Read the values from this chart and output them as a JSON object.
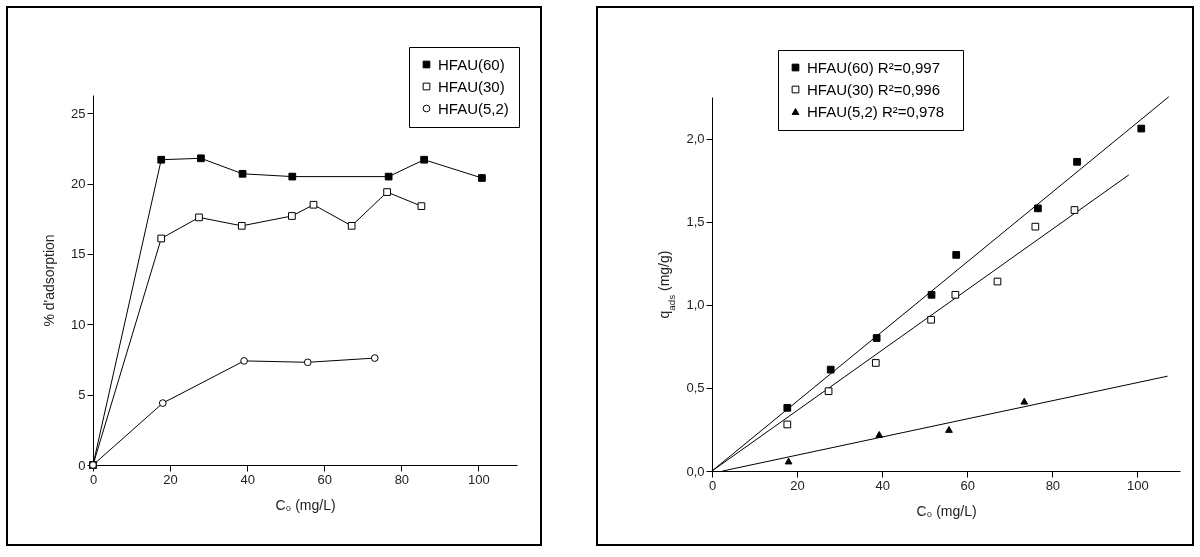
{
  "chart_data": [
    {
      "type": "line",
      "xlabel": "C₀ (mg/L)",
      "ylabel": "% d'adsorption",
      "xlim": [
        0,
        110
      ],
      "ylim": [
        0,
        26.3
      ],
      "xticks": [
        0,
        20,
        40,
        60,
        80,
        100
      ],
      "yticks": [
        0,
        5,
        10,
        15,
        20,
        25
      ],
      "grid": false,
      "legend": "top right",
      "series": [
        {
          "name": "HFAU(60)",
          "color": "#000000",
          "marker": "square",
          "x": [
            0,
            17.7,
            28.0,
            38.8,
            51.7,
            76.7,
            85.9,
            100.9
          ],
          "values": [
            0,
            21.7,
            21.8,
            20.7,
            20.5,
            20.5,
            21.7,
            20.4
          ]
        },
        {
          "name": "HFAU(30)",
          "color": "#ffffff",
          "marker": "square",
          "x": [
            0,
            17.7,
            27.5,
            38.6,
            51.6,
            57.2,
            67.1,
            76.3,
            85.2
          ],
          "values": [
            0,
            16.1,
            17.6,
            17.0,
            17.7,
            18.5,
            17.0,
            19.4,
            18.4
          ]
        },
        {
          "name": "HFAU(5,2)",
          "color": "#ffffff",
          "marker": "circle",
          "x": [
            0,
            18.1,
            39.2,
            55.7,
            73.1
          ],
          "values": [
            0,
            4.4,
            7.4,
            7.3,
            7.6
          ]
        }
      ]
    },
    {
      "type": "scatter",
      "xlabel": "C₀ (mg/L)",
      "ylabel": "q$_{ads}$ (mg/g)",
      "xlim": [
        0,
        110
      ],
      "ylim": [
        0,
        2.25
      ],
      "xticks": [
        0,
        20,
        40,
        60,
        80,
        100
      ],
      "yticks": [
        {
          "value": 0,
          "label": "0,0"
        },
        {
          "value": 0.5,
          "label": "0,5"
        },
        {
          "value": 1,
          "label": "1,0"
        },
        {
          "value": 1.5,
          "label": "1,5"
        },
        {
          "value": 2,
          "label": "2,0"
        }
      ],
      "grid": false,
      "legend": "top left",
      "series": [
        {
          "name": "HFAU(60)   R²=0,997",
          "color": "#000000",
          "marker": "square",
          "x": [
            17.7,
            27.9,
            38.7,
            51.6,
            57.4,
            76.6,
            85.8,
            100.9
          ],
          "values": [
            0.38,
            0.61,
            0.8,
            1.06,
            1.3,
            1.58,
            1.86,
            2.06
          ]
        },
        {
          "name": "HFAU(30)   R²=0,996",
          "color": "#ffffff",
          "marker": "square",
          "x": [
            17.7,
            27.4,
            38.5,
            51.5,
            57.2,
            67.1,
            76.0,
            85.2
          ],
          "values": [
            0.28,
            0.48,
            0.65,
            0.91,
            1.06,
            1.14,
            1.47,
            1.57
          ]
        },
        {
          "name": "HFAU(5,2)   R²=0,978",
          "color": "#000000",
          "marker": "triangle",
          "x": [
            18.0,
            39.3,
            55.7,
            73.4
          ],
          "values": [
            0.06,
            0.22,
            0.25,
            0.42
          ]
        },
        {
          "type": "line",
          "color": "#000000",
          "x": [
            0,
            107.3
          ],
          "values": [
            0,
            2.25
          ]
        },
        {
          "type": "line",
          "color": "#000000",
          "x": [
            0,
            97.9
          ],
          "values": [
            0,
            1.78
          ]
        },
        {
          "type": "line",
          "color": "#000000",
          "x": [
            2.5,
            107
          ],
          "values": [
            0,
            0.57
          ]
        }
      ]
    }
  ]
}
